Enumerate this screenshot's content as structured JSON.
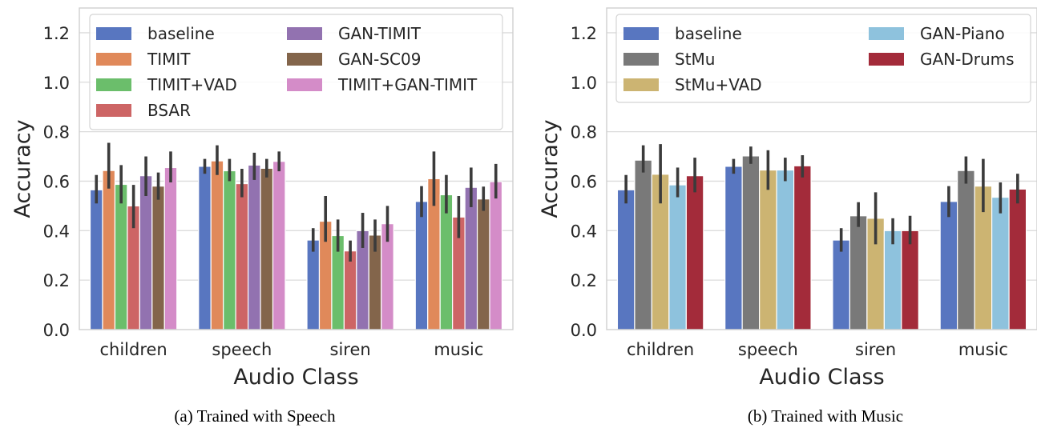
{
  "chart_data": [
    {
      "type": "bar",
      "caption": "(a) Trained with Speech",
      "xlabel": "Audio Class",
      "ylabel": "Accuracy",
      "ylim": [
        0,
        1.3
      ],
      "yticks": [
        "0.0",
        "0.2",
        "0.4",
        "0.6",
        "0.8",
        "1.0",
        "1.2"
      ],
      "grid": "horizontal",
      "legend": {
        "placement": "top-left",
        "columns": 2
      },
      "categories": [
        "children",
        "speech",
        "siren",
        "music"
      ],
      "series": [
        {
          "name": "baseline",
          "color": "#5876c0",
          "values": [
            0.565,
            0.66,
            0.362,
            0.518
          ],
          "ci": [
            [
              0.51,
              0.625
            ],
            [
              0.63,
              0.69
            ],
            [
              0.315,
              0.41
            ],
            [
              0.455,
              0.58
            ]
          ]
        },
        {
          "name": "TIMIT",
          "color": "#e0895a",
          "values": [
            0.643,
            0.682,
            0.438,
            0.61
          ],
          "ci": [
            [
              0.57,
              0.755
            ],
            [
              0.625,
              0.745
            ],
            [
              0.355,
              0.54
            ],
            [
              0.5,
              0.72
            ]
          ]
        },
        {
          "name": "TIMIT+VAD",
          "color": "#6bbe6b",
          "values": [
            0.587,
            0.642,
            0.38,
            0.545
          ],
          "ci": [
            [
              0.51,
              0.665
            ],
            [
              0.6,
              0.69
            ],
            [
              0.315,
              0.445
            ],
            [
              0.47,
              0.625
            ]
          ]
        },
        {
          "name": "BSAR",
          "color": "#cd6565",
          "values": [
            0.5,
            0.59,
            0.318,
            0.455
          ],
          "ci": [
            [
              0.41,
              0.585
            ],
            [
              0.535,
              0.65
            ],
            [
              0.275,
              0.36
            ],
            [
              0.37,
              0.54
            ]
          ]
        },
        {
          "name": "GAN-TIMIT",
          "color": "#9272b0",
          "values": [
            0.622,
            0.665,
            0.4,
            0.575
          ],
          "ci": [
            [
              0.54,
              0.7
            ],
            [
              0.605,
              0.715
            ],
            [
              0.33,
              0.472
            ],
            [
              0.495,
              0.655
            ]
          ]
        },
        {
          "name": "GAN-SC09",
          "color": "#83654b",
          "values": [
            0.58,
            0.652,
            0.382,
            0.528
          ],
          "ci": [
            [
              0.525,
              0.635
            ],
            [
              0.615,
              0.69
            ],
            [
              0.315,
              0.445
            ],
            [
              0.48,
              0.578
            ]
          ]
        },
        {
          "name": "TIMIT+GAN-TIMIT",
          "color": "#d48cc8",
          "values": [
            0.655,
            0.68,
            0.428,
            0.598
          ],
          "ci": [
            [
              0.595,
              0.72
            ],
            [
              0.64,
              0.72
            ],
            [
              0.355,
              0.5
            ],
            [
              0.53,
              0.67
            ]
          ]
        }
      ]
    },
    {
      "type": "bar",
      "caption": "(b) Trained with Music",
      "xlabel": "Audio Class",
      "ylabel": "Accuracy",
      "ylim": [
        0,
        1.3
      ],
      "yticks": [
        "0.0",
        "0.2",
        "0.4",
        "0.6",
        "0.8",
        "1.0",
        "1.2"
      ],
      "grid": "horizontal",
      "legend": {
        "placement": "top",
        "columns": 2
      },
      "categories": [
        "children",
        "speech",
        "siren",
        "music"
      ],
      "series": [
        {
          "name": "baseline",
          "color": "#5876c0",
          "values": [
            0.565,
            0.66,
            0.362,
            0.518
          ],
          "ci": [
            [
              0.51,
              0.625
            ],
            [
              0.63,
              0.69
            ],
            [
              0.315,
              0.41
            ],
            [
              0.455,
              0.58
            ]
          ]
        },
        {
          "name": "StMu",
          "color": "#797979",
          "values": [
            0.685,
            0.702,
            0.46,
            0.643
          ],
          "ci": [
            [
              0.635,
              0.745
            ],
            [
              0.67,
              0.74
            ],
            [
              0.415,
              0.515
            ],
            [
              0.59,
              0.7
            ]
          ]
        },
        {
          "name": "StMu+VAD",
          "color": "#ccb472",
          "values": [
            0.628,
            0.645,
            0.45,
            0.58
          ],
          "ci": [
            [
              0.51,
              0.75
            ],
            [
              0.565,
              0.725
            ],
            [
              0.345,
              0.555
            ],
            [
              0.475,
              0.69
            ]
          ]
        },
        {
          "name": "GAN-Piano",
          "color": "#8ec2dd",
          "values": [
            0.585,
            0.645,
            0.4,
            0.535
          ],
          "ci": [
            [
              0.535,
              0.655
            ],
            [
              0.6,
              0.695
            ],
            [
              0.345,
              0.45
            ],
            [
              0.47,
              0.595
            ]
          ]
        },
        {
          "name": "GAN-Drums",
          "color": "#a32b3a",
          "values": [
            0.622,
            0.662,
            0.4,
            0.568
          ],
          "ci": [
            [
              0.555,
              0.695
            ],
            [
              0.615,
              0.705
            ],
            [
              0.345,
              0.46
            ],
            [
              0.51,
              0.63
            ]
          ]
        }
      ]
    }
  ]
}
